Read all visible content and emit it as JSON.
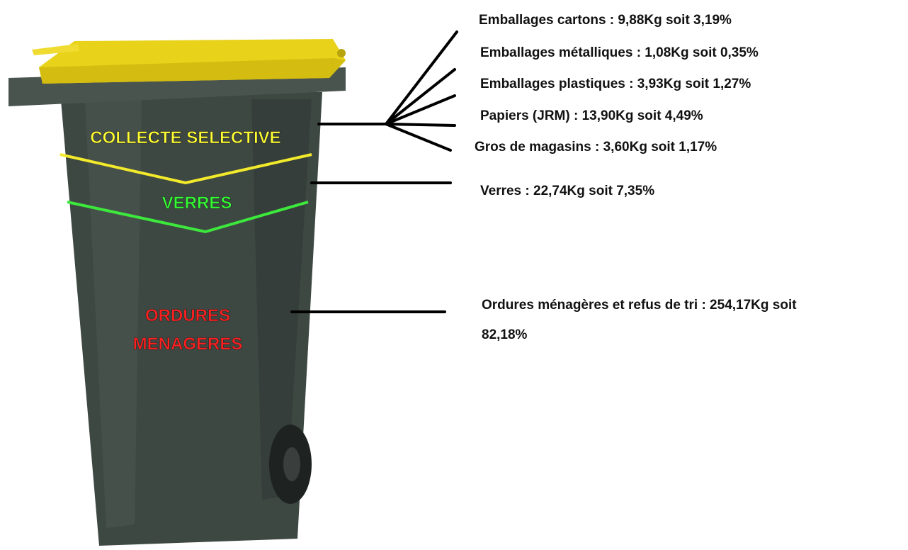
{
  "bin_labels": [
    "COLLECTE SELECTIVE",
    "VERRES",
    [
      "ORDURES",
      "MENAGERES"
    ]
  ],
  "annotations": [
    "Emballages cartons : 9,88Kg soit 3,19%",
    "Emballages métalliques : 1,08Kg soit 0,35%",
    "Emballages plastiques : 3,93Kg soit 1,27%",
    "Papiers (JRM) : 13,90Kg soit 4,49%",
    "Gros de magasins : 3,60Kg soit 1,17%",
    "Verres : 22,74Kg soit 7,35%",
    [
      "Ordures ménagères et refus de tri : 254,17Kg soit",
      "82,18%"
    ]
  ]
}
